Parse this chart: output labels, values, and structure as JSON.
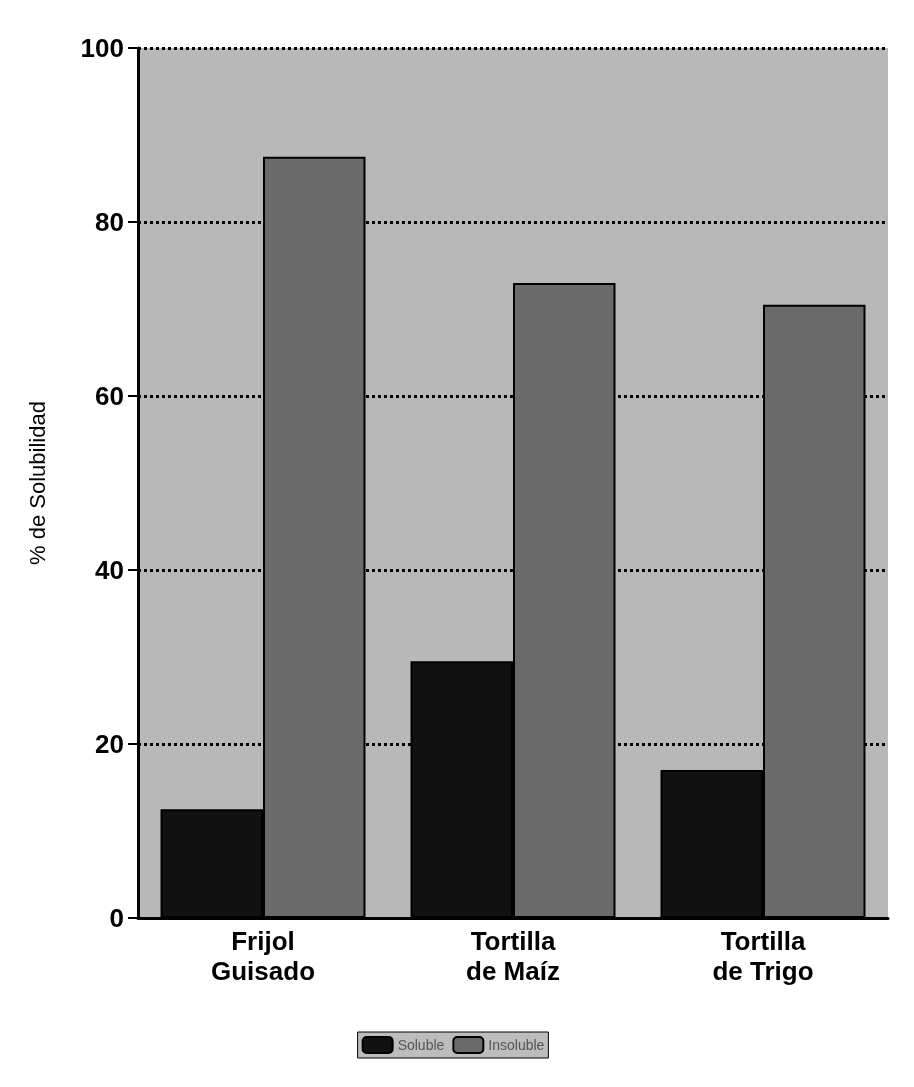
{
  "chart_data": {
    "type": "bar",
    "ylabel": "% de Solubilidad",
    "categories": [
      "Frijol\nGuisado",
      "Tortilla\nde Maíz",
      "Tortilla\nde Trigo"
    ],
    "series": [
      {
        "name": "Soluble",
        "color": "#111111",
        "values": [
          12.5,
          29.5,
          17
        ]
      },
      {
        "name": "Insoluble",
        "color": "#6a6a6a",
        "values": [
          87.5,
          73,
          70.5
        ]
      }
    ],
    "ylim": [
      0,
      100
    ],
    "yticks": [
      0,
      20,
      40,
      60,
      80,
      100
    ],
    "grid": "y",
    "line_style": "dotted",
    "legend": "bottom"
  }
}
